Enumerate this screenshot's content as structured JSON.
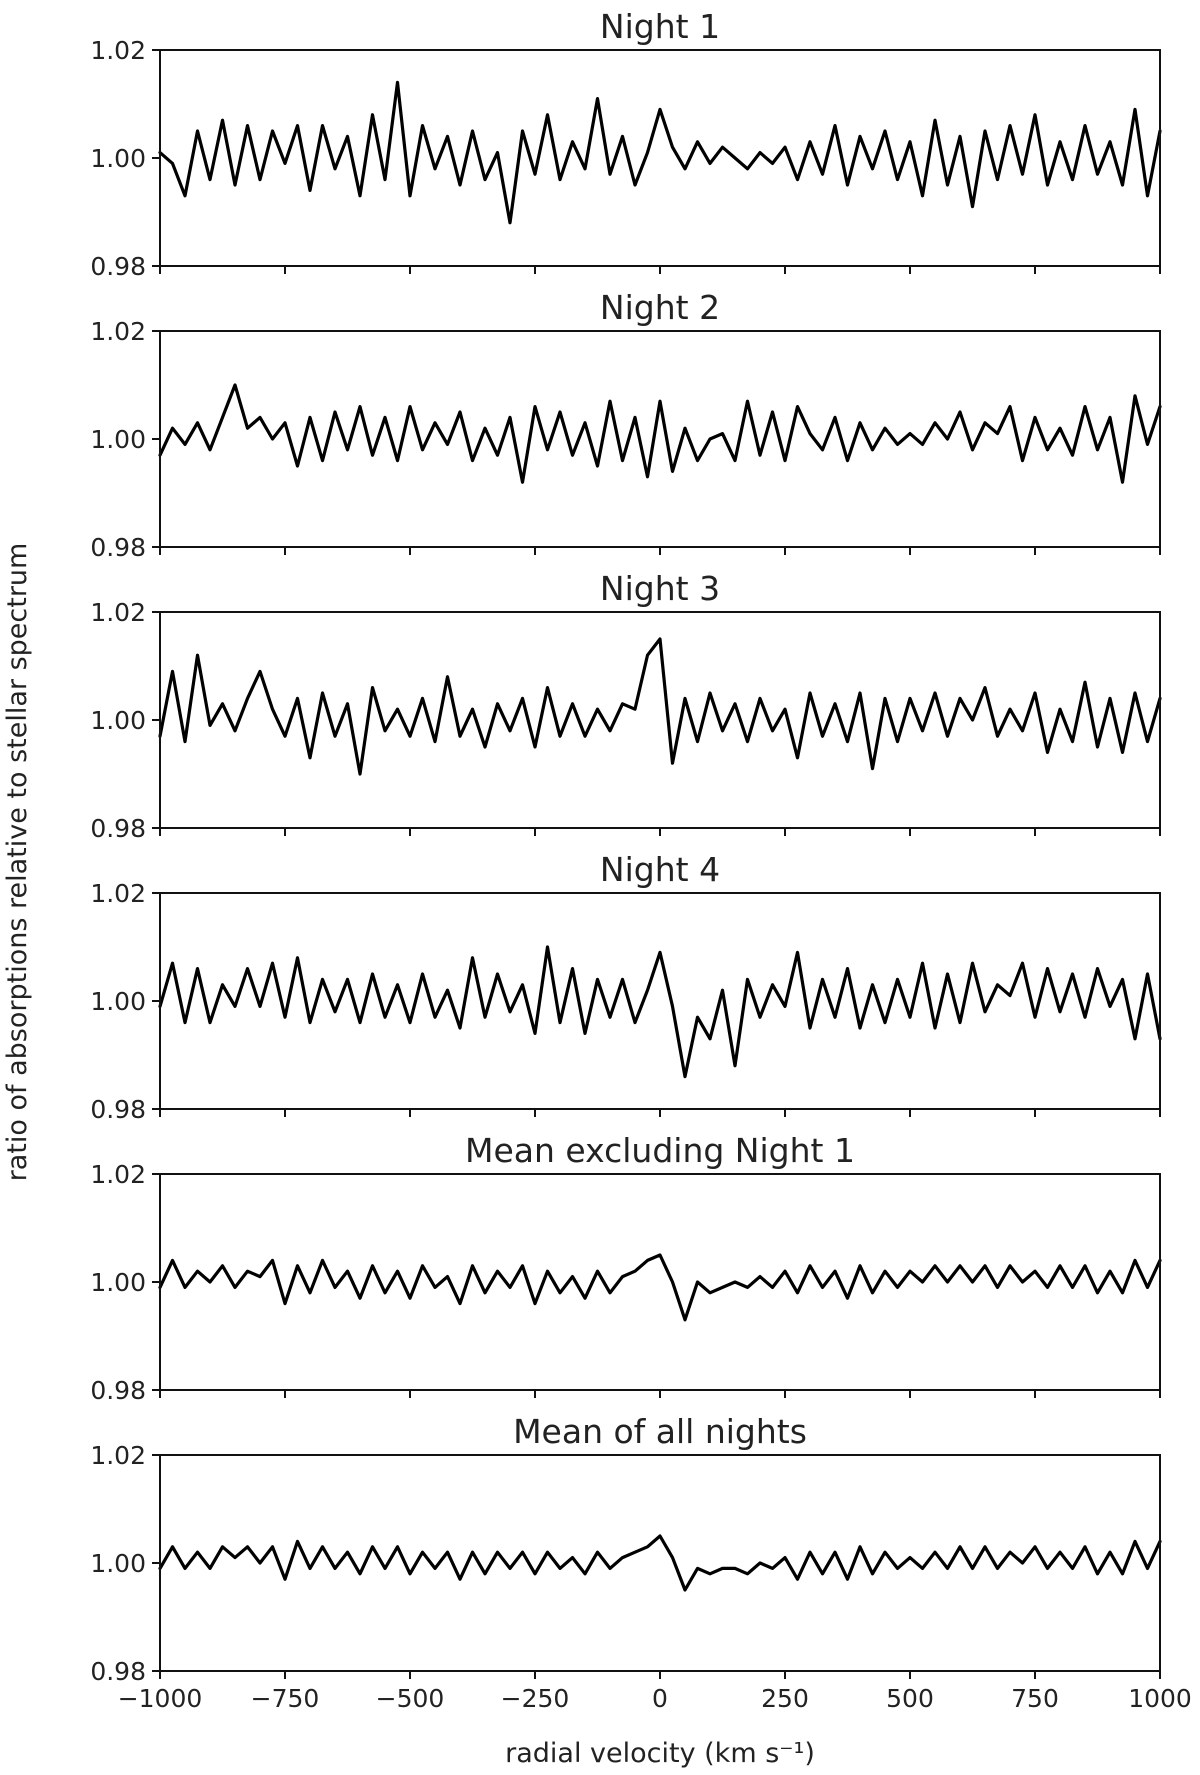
{
  "chart_data": [
    {
      "type": "line",
      "title": "Night 1",
      "xlim": [
        -1000,
        1000
      ],
      "ylim": [
        0.98,
        1.02
      ],
      "xticks": [
        "−1000",
        "−750",
        "−500",
        "−250",
        "0",
        "250",
        "500",
        "750",
        "1000"
      ],
      "yticks": [
        "0.98",
        "1.00",
        "1.02"
      ],
      "grid": false,
      "x": [
        -1000,
        -975,
        -950,
        -925,
        -900,
        -875,
        -850,
        -825,
        -800,
        -775,
        -750,
        -725,
        -700,
        -675,
        -650,
        -625,
        -600,
        -575,
        -550,
        -525,
        -500,
        -475,
        -450,
        -425,
        -400,
        -375,
        -350,
        -325,
        -300,
        -275,
        -250,
        -225,
        -200,
        -175,
        -150,
        -125,
        -100,
        -75,
        -50,
        -25,
        0,
        25,
        50,
        75,
        100,
        125,
        150,
        175,
        200,
        225,
        250,
        275,
        300,
        325,
        350,
        375,
        400,
        425,
        450,
        475,
        500,
        525,
        550,
        575,
        600,
        625,
        650,
        675,
        700,
        725,
        750,
        775,
        800,
        825,
        850,
        875,
        900,
        925,
        950,
        975,
        1000
      ],
      "series": [
        {
          "color": "#000000",
          "values": [
            1.001,
            0.999,
            0.993,
            1.005,
            0.996,
            1.007,
            0.995,
            1.006,
            0.996,
            1.005,
            0.999,
            1.006,
            0.994,
            1.006,
            0.998,
            1.004,
            0.993,
            1.008,
            0.996,
            1.014,
            0.993,
            1.006,
            0.998,
            1.004,
            0.995,
            1.005,
            0.996,
            1.001,
            0.988,
            1.005,
            0.997,
            1.008,
            0.996,
            1.003,
            0.998,
            1.011,
            0.997,
            1.004,
            0.995,
            1.001,
            1.009,
            1.002,
            0.998,
            1.003,
            0.999,
            1.002,
            1.0,
            0.998,
            1.001,
            0.999,
            1.002,
            0.996,
            1.003,
            0.997,
            1.006,
            0.995,
            1.004,
            0.998,
            1.005,
            0.996,
            1.003,
            0.993,
            1.007,
            0.995,
            1.004,
            0.991,
            1.005,
            0.996,
            1.006,
            0.997,
            1.008,
            0.995,
            1.003,
            0.996,
            1.006,
            0.997,
            1.003,
            0.995,
            1.009,
            0.993,
            1.005
          ]
        }
      ]
    },
    {
      "type": "line",
      "title": "Night 2",
      "xlim": [
        -1000,
        1000
      ],
      "ylim": [
        0.98,
        1.02
      ],
      "xticks": [
        "−1000",
        "−750",
        "−500",
        "−250",
        "0",
        "250",
        "500",
        "750",
        "1000"
      ],
      "yticks": [
        "0.98",
        "1.00",
        "1.02"
      ],
      "grid": false,
      "x": [
        -1000,
        -975,
        -950,
        -925,
        -900,
        -875,
        -850,
        -825,
        -800,
        -775,
        -750,
        -725,
        -700,
        -675,
        -650,
        -625,
        -600,
        -575,
        -550,
        -525,
        -500,
        -475,
        -450,
        -425,
        -400,
        -375,
        -350,
        -325,
        -300,
        -275,
        -250,
        -225,
        -200,
        -175,
        -150,
        -125,
        -100,
        -75,
        -50,
        -25,
        0,
        25,
        50,
        75,
        100,
        125,
        150,
        175,
        200,
        225,
        250,
        275,
        300,
        325,
        350,
        375,
        400,
        425,
        450,
        475,
        500,
        525,
        550,
        575,
        600,
        625,
        650,
        675,
        700,
        725,
        750,
        775,
        800,
        825,
        850,
        875,
        900,
        925,
        950,
        975,
        1000
      ],
      "series": [
        {
          "color": "#000000",
          "values": [
            0.997,
            1.002,
            0.999,
            1.003,
            0.998,
            1.004,
            1.01,
            1.002,
            1.004,
            1.0,
            1.003,
            0.995,
            1.004,
            0.996,
            1.005,
            0.998,
            1.006,
            0.997,
            1.004,
            0.996,
            1.006,
            0.998,
            1.003,
            0.999,
            1.005,
            0.996,
            1.002,
            0.997,
            1.004,
            0.992,
            1.006,
            0.998,
            1.005,
            0.997,
            1.003,
            0.995,
            1.007,
            0.996,
            1.004,
            0.993,
            1.007,
            0.994,
            1.002,
            0.996,
            1.0,
            1.001,
            0.996,
            1.007,
            0.997,
            1.005,
            0.996,
            1.006,
            1.001,
            0.998,
            1.004,
            0.996,
            1.003,
            0.998,
            1.002,
            0.999,
            1.001,
            0.999,
            1.003,
            1.0,
            1.005,
            0.998,
            1.003,
            1.001,
            1.006,
            0.996,
            1.004,
            0.998,
            1.002,
            0.997,
            1.006,
            0.998,
            1.004,
            0.992,
            1.008,
            0.999,
            1.006
          ]
        }
      ]
    },
    {
      "type": "line",
      "title": "Night 3",
      "xlim": [
        -1000,
        1000
      ],
      "ylim": [
        0.98,
        1.02
      ],
      "xticks": [
        "−1000",
        "−750",
        "−500",
        "−250",
        "0",
        "250",
        "500",
        "750",
        "1000"
      ],
      "yticks": [
        "0.98",
        "1.00",
        "1.02"
      ],
      "grid": false,
      "x": [
        -1000,
        -975,
        -950,
        -925,
        -900,
        -875,
        -850,
        -825,
        -800,
        -775,
        -750,
        -725,
        -700,
        -675,
        -650,
        -625,
        -600,
        -575,
        -550,
        -525,
        -500,
        -475,
        -450,
        -425,
        -400,
        -375,
        -350,
        -325,
        -300,
        -275,
        -250,
        -225,
        -200,
        -175,
        -150,
        -125,
        -100,
        -75,
        -50,
        -25,
        0,
        25,
        50,
        75,
        100,
        125,
        150,
        175,
        200,
        225,
        250,
        275,
        300,
        325,
        350,
        375,
        400,
        425,
        450,
        475,
        500,
        525,
        550,
        575,
        600,
        625,
        650,
        675,
        700,
        725,
        750,
        775,
        800,
        825,
        850,
        875,
        900,
        925,
        950,
        975,
        1000
      ],
      "series": [
        {
          "color": "#000000",
          "values": [
            0.997,
            1.009,
            0.996,
            1.012,
            0.999,
            1.003,
            0.998,
            1.004,
            1.009,
            1.002,
            0.997,
            1.004,
            0.993,
            1.005,
            0.997,
            1.003,
            0.99,
            1.006,
            0.998,
            1.002,
            0.997,
            1.004,
            0.996,
            1.008,
            0.997,
            1.002,
            0.995,
            1.003,
            0.998,
            1.004,
            0.995,
            1.006,
            0.997,
            1.003,
            0.997,
            1.002,
            0.998,
            1.003,
            1.002,
            1.012,
            1.015,
            0.992,
            1.004,
            0.996,
            1.005,
            0.998,
            1.003,
            0.996,
            1.004,
            0.998,
            1.002,
            0.993,
            1.005,
            0.997,
            1.003,
            0.996,
            1.005,
            0.991,
            1.004,
            0.996,
            1.004,
            0.998,
            1.005,
            0.997,
            1.004,
            1.0,
            1.006,
            0.997,
            1.002,
            0.998,
            1.005,
            0.994,
            1.002,
            0.996,
            1.007,
            0.995,
            1.004,
            0.994,
            1.005,
            0.996,
            1.004
          ]
        }
      ]
    },
    {
      "type": "line",
      "title": "Night 4",
      "xlim": [
        -1000,
        1000
      ],
      "ylim": [
        0.98,
        1.02
      ],
      "xticks": [
        "−1000",
        "−750",
        "−500",
        "−250",
        "0",
        "250",
        "500",
        "750",
        "1000"
      ],
      "yticks": [
        "0.98",
        "1.00",
        "1.02"
      ],
      "grid": false,
      "x": [
        -1000,
        -975,
        -950,
        -925,
        -900,
        -875,
        -850,
        -825,
        -800,
        -775,
        -750,
        -725,
        -700,
        -675,
        -650,
        -625,
        -600,
        -575,
        -550,
        -525,
        -500,
        -475,
        -450,
        -425,
        -400,
        -375,
        -350,
        -325,
        -300,
        -275,
        -250,
        -225,
        -200,
        -175,
        -150,
        -125,
        -100,
        -75,
        -50,
        -25,
        0,
        25,
        50,
        75,
        100,
        125,
        150,
        175,
        200,
        225,
        250,
        275,
        300,
        325,
        350,
        375,
        400,
        425,
        450,
        475,
        500,
        525,
        550,
        575,
        600,
        625,
        650,
        675,
        700,
        725,
        750,
        775,
        800,
        825,
        850,
        875,
        900,
        925,
        950,
        975,
        1000
      ],
      "series": [
        {
          "color": "#000000",
          "values": [
            0.999,
            1.007,
            0.996,
            1.006,
            0.996,
            1.003,
            0.999,
            1.006,
            0.999,
            1.007,
            0.997,
            1.008,
            0.996,
            1.004,
            0.998,
            1.004,
            0.996,
            1.005,
            0.997,
            1.003,
            0.996,
            1.005,
            0.997,
            1.002,
            0.995,
            1.008,
            0.997,
            1.005,
            0.998,
            1.003,
            0.994,
            1.01,
            0.996,
            1.006,
            0.994,
            1.004,
            0.997,
            1.004,
            0.996,
            1.002,
            1.009,
            0.999,
            0.986,
            0.997,
            0.993,
            1.002,
            0.988,
            1.004,
            0.997,
            1.003,
            0.999,
            1.009,
            0.995,
            1.004,
            0.997,
            1.006,
            0.995,
            1.003,
            0.996,
            1.004,
            0.997,
            1.007,
            0.995,
            1.005,
            0.996,
            1.007,
            0.998,
            1.003,
            1.001,
            1.007,
            0.997,
            1.006,
            0.998,
            1.005,
            0.997,
            1.006,
            0.999,
            1.004,
            0.993,
            1.005,
            0.993
          ]
        }
      ]
    },
    {
      "type": "line",
      "title": "Mean excluding Night 1",
      "xlim": [
        -1000,
        1000
      ],
      "ylim": [
        0.98,
        1.02
      ],
      "xticks": [
        "−1000",
        "−750",
        "−500",
        "−250",
        "0",
        "250",
        "500",
        "750",
        "1000"
      ],
      "yticks": [
        "0.98",
        "1.00",
        "1.02"
      ],
      "grid": false,
      "x": [
        -1000,
        -975,
        -950,
        -925,
        -900,
        -875,
        -850,
        -825,
        -800,
        -775,
        -750,
        -725,
        -700,
        -675,
        -650,
        -625,
        -600,
        -575,
        -550,
        -525,
        -500,
        -475,
        -450,
        -425,
        -400,
        -375,
        -350,
        -325,
        -300,
        -275,
        -250,
        -225,
        -200,
        -175,
        -150,
        -125,
        -100,
        -75,
        -50,
        -25,
        0,
        25,
        50,
        75,
        100,
        125,
        150,
        175,
        200,
        225,
        250,
        275,
        300,
        325,
        350,
        375,
        400,
        425,
        450,
        475,
        500,
        525,
        550,
        575,
        600,
        625,
        650,
        675,
        700,
        725,
        750,
        775,
        800,
        825,
        850,
        875,
        900,
        925,
        950,
        975,
        1000
      ],
      "series": [
        {
          "color": "#000000",
          "values": [
            0.999,
            1.004,
            0.999,
            1.002,
            1.0,
            1.003,
            0.999,
            1.002,
            1.001,
            1.004,
            0.996,
            1.003,
            0.998,
            1.004,
            0.999,
            1.002,
            0.997,
            1.003,
            0.998,
            1.002,
            0.997,
            1.003,
            0.999,
            1.001,
            0.996,
            1.003,
            0.998,
            1.002,
            0.999,
            1.003,
            0.996,
            1.002,
            0.998,
            1.001,
            0.997,
            1.002,
            0.998,
            1.001,
            1.002,
            1.004,
            1.005,
            1.0,
            0.993,
            1.0,
            0.998,
            0.999,
            1.0,
            0.999,
            1.001,
            0.999,
            1.002,
            0.998,
            1.003,
            0.999,
            1.002,
            0.997,
            1.003,
            0.998,
            1.002,
            0.999,
            1.002,
            1.0,
            1.003,
            1.0,
            1.003,
            1.0,
            1.003,
            0.999,
            1.003,
            1.0,
            1.002,
            0.999,
            1.003,
            0.999,
            1.003,
            0.998,
            1.002,
            0.998,
            1.004,
            0.999,
            1.004
          ]
        }
      ]
    },
    {
      "type": "line",
      "title": "Mean of all nights",
      "xlabel": "radial velocity (km s⁻¹)",
      "xlim": [
        -1000,
        1000
      ],
      "ylim": [
        0.98,
        1.02
      ],
      "xticks": [
        "−1000",
        "−750",
        "−500",
        "−250",
        "0",
        "250",
        "500",
        "750",
        "1000"
      ],
      "yticks": [
        "0.98",
        "1.00",
        "1.02"
      ],
      "grid": false,
      "x": [
        -1000,
        -975,
        -950,
        -925,
        -900,
        -875,
        -850,
        -825,
        -800,
        -775,
        -750,
        -725,
        -700,
        -675,
        -650,
        -625,
        -600,
        -575,
        -550,
        -525,
        -500,
        -475,
        -450,
        -425,
        -400,
        -375,
        -350,
        -325,
        -300,
        -275,
        -250,
        -225,
        -200,
        -175,
        -150,
        -125,
        -100,
        -75,
        -50,
        -25,
        0,
        25,
        50,
        75,
        100,
        125,
        150,
        175,
        200,
        225,
        250,
        275,
        300,
        325,
        350,
        375,
        400,
        425,
        450,
        475,
        500,
        525,
        550,
        575,
        600,
        625,
        650,
        675,
        700,
        725,
        750,
        775,
        800,
        825,
        850,
        875,
        900,
        925,
        950,
        975,
        1000
      ],
      "series": [
        {
          "color": "#000000",
          "values": [
            0.999,
            1.003,
            0.999,
            1.002,
            0.999,
            1.003,
            1.001,
            1.003,
            1.0,
            1.003,
            0.997,
            1.004,
            0.999,
            1.003,
            0.999,
            1.002,
            0.998,
            1.003,
            0.999,
            1.003,
            0.998,
            1.002,
            0.999,
            1.002,
            0.997,
            1.002,
            0.998,
            1.002,
            0.999,
            1.002,
            0.998,
            1.002,
            0.999,
            1.001,
            0.998,
            1.002,
            0.999,
            1.001,
            1.002,
            1.003,
            1.005,
            1.001,
            0.995,
            0.999,
            0.998,
            0.999,
            0.999,
            0.998,
            1.0,
            0.999,
            1.001,
            0.997,
            1.002,
            0.998,
            1.002,
            0.997,
            1.003,
            0.998,
            1.002,
            0.999,
            1.001,
            0.999,
            1.002,
            0.999,
            1.003,
            0.999,
            1.003,
            0.999,
            1.002,
            1.0,
            1.003,
            0.999,
            1.002,
            0.999,
            1.003,
            0.998,
            1.002,
            0.998,
            1.004,
            0.999,
            1.004
          ]
        }
      ]
    }
  ],
  "figure": {
    "ylabel": "ratio of absorptions relative to stellar spectrum"
  }
}
